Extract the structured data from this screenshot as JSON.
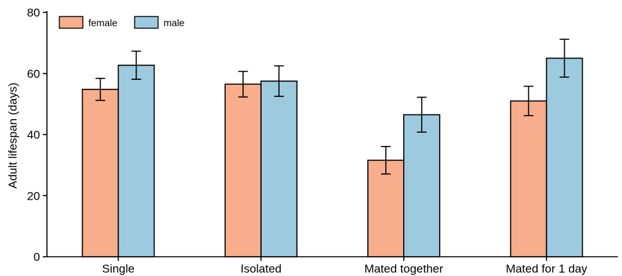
{
  "chart_data": {
    "type": "bar",
    "title": "",
    "xlabel": "",
    "ylabel": "Adult lifespan (days)",
    "ylim": [
      0,
      80
    ],
    "yticks": [
      0,
      20,
      40,
      60,
      80
    ],
    "categories": [
      "Single",
      "Isolated",
      "Mated together",
      "Mated for 1 day"
    ],
    "series": [
      {
        "name": "female",
        "values": [
          54.8,
          56.5,
          31.6,
          51.0
        ],
        "errors": [
          3.6,
          4.2,
          4.5,
          4.8
        ]
      },
      {
        "name": "male",
        "values": [
          62.7,
          57.5,
          46.5,
          65.0
        ],
        "errors": [
          4.6,
          5.0,
          5.7,
          6.2
        ]
      }
    ],
    "colors": {
      "female": "#f8ad8c",
      "male": "#9ecadf",
      "outline": "#000000"
    },
    "grid": false,
    "legend_position": "top-left"
  }
}
